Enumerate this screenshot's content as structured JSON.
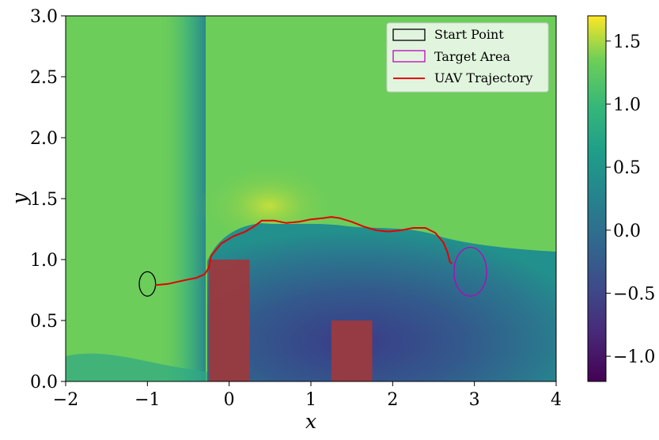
{
  "chart_data": {
    "type": "heatmap",
    "title": "",
    "xlabel": "x",
    "ylabel": "y",
    "xlim": [
      -2,
      4
    ],
    "ylim": [
      0,
      3
    ],
    "x_ticks": [
      "−2",
      "−1",
      "0",
      "1",
      "2",
      "3",
      "4"
    ],
    "y_ticks": [
      "0.0",
      "0.5",
      "1.0",
      "1.5",
      "2.0",
      "2.5",
      "3.0"
    ],
    "colorbar": {
      "colormap": "viridis",
      "range": [
        -1.2,
        1.7
      ],
      "ticks": [
        "−1.0",
        "−0.5",
        "0.0",
        "0.5",
        "1.0",
        "1.5"
      ]
    },
    "legend": {
      "placement": "top-right",
      "entries": [
        {
          "label": "Start Point",
          "color": "#000000",
          "marker": "ellipse-outline"
        },
        {
          "label": "Target Area",
          "color": "#bf00bf",
          "marker": "ellipse-outline"
        },
        {
          "label": "UAV Trajectory",
          "color": "#e60000",
          "marker": "line"
        }
      ]
    },
    "start_point": {
      "cx": -1.0,
      "cy": 0.8,
      "rx": 0.1,
      "ry": 0.1
    },
    "target_area": {
      "cx": 2.95,
      "cy": 0.9,
      "rx": 0.2,
      "ry": 0.2
    },
    "obstacles": [
      {
        "x0": -0.25,
        "x1": 0.25,
        "y0": 0.0,
        "y1": 1.0
      },
      {
        "x0": 1.25,
        "x1": 1.75,
        "y0": 0.0,
        "y1": 0.5
      }
    ],
    "trajectory": {
      "x": [
        -0.9,
        -0.75,
        -0.55,
        -0.4,
        -0.3,
        -0.25,
        -0.22,
        -0.1,
        0.05,
        0.2,
        0.3,
        0.4,
        0.55,
        0.7,
        0.85,
        1.0,
        1.15,
        1.25,
        1.35,
        1.5,
        1.65,
        1.8,
        1.95,
        2.1,
        2.25,
        2.4,
        2.52,
        2.62,
        2.67,
        2.69,
        2.7,
        2.72
      ],
      "y": [
        0.79,
        0.8,
        0.83,
        0.85,
        0.88,
        0.93,
        1.03,
        1.13,
        1.19,
        1.23,
        1.27,
        1.32,
        1.32,
        1.3,
        1.31,
        1.33,
        1.34,
        1.35,
        1.34,
        1.31,
        1.27,
        1.24,
        1.23,
        1.24,
        1.26,
        1.26,
        1.22,
        1.14,
        1.06,
        1.01,
        0.98,
        0.97
      ]
    }
  }
}
